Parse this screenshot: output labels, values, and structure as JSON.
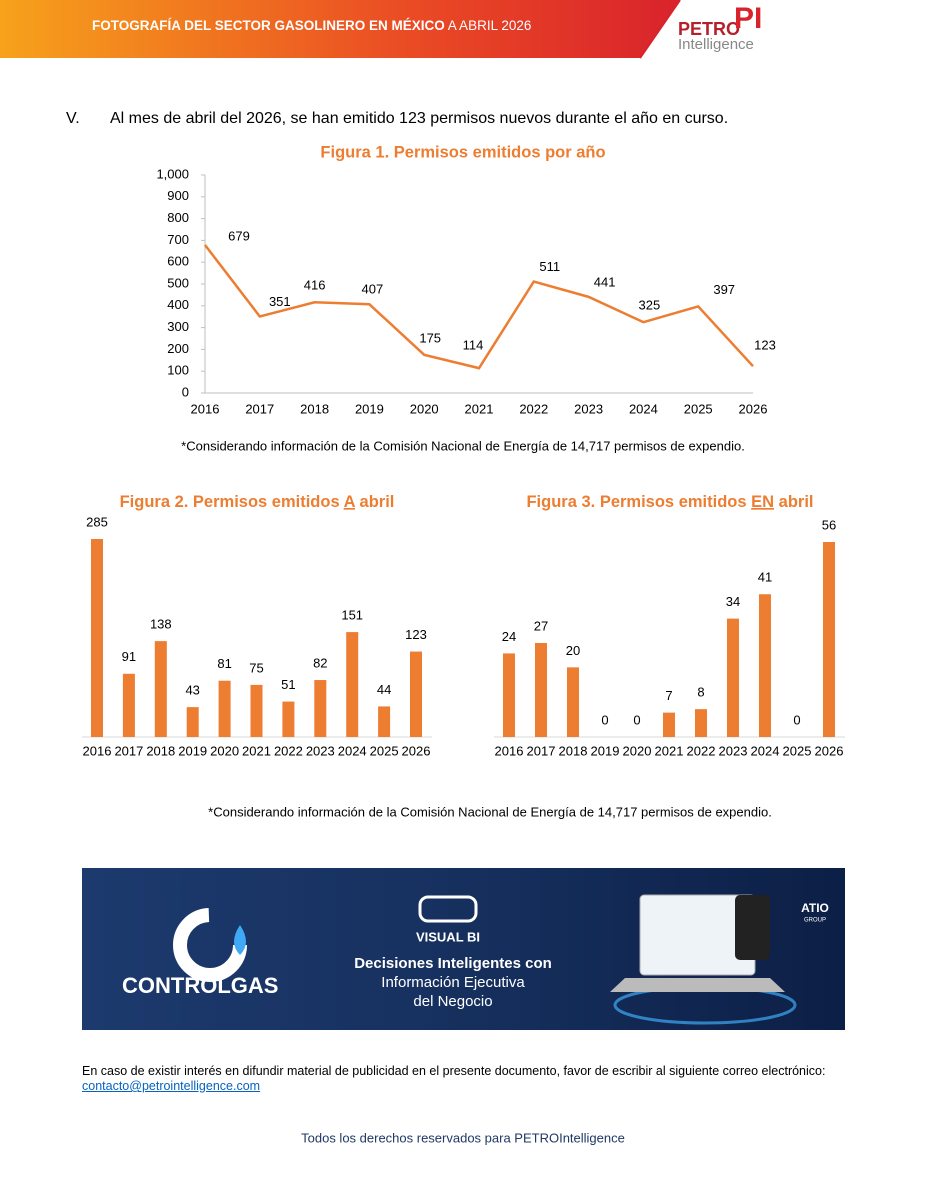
{
  "header": {
    "title": [
      "FOTOGRAFÍA DEL SECTOR GASOLINERO EN MÉXICO",
      "A ABRIL 2026"
    ],
    "logo": {
      "brand": "PETRO",
      "mark": "PI",
      "tagline": "Intelligence"
    }
  },
  "section": {
    "number": "V.",
    "text": "Al mes de abril del 2026, se han emitido 123 permisos nuevos durante el año en curso."
  },
  "chart_data": [
    {
      "type": "line",
      "title": "Figura 1. Permisos emitidos por año",
      "categories": [
        "2016",
        "2017",
        "2018",
        "2019",
        "2020",
        "2021",
        "2022",
        "2023",
        "2024",
        "2025",
        "2026"
      ],
      "values": [
        679,
        351,
        416,
        407,
        175,
        114,
        511,
        441,
        325,
        397,
        123
      ],
      "color": "#ed7d31",
      "ylim": [
        0,
        1000
      ],
      "yticks": [
        0,
        100,
        200,
        300,
        400,
        500,
        600,
        700,
        800,
        900,
        {
          "value": 1000,
          "label": "1,000"
        }
      ],
      "note": "*Considerando información de la Comisión Nacional de Energía de 14,717 permisos de expendio."
    },
    {
      "type": "bar",
      "title": [
        "Figura 2. Permisos emitidos",
        "A",
        "abril"
      ],
      "categories": [
        "2016",
        "2017",
        "2018",
        "2019",
        "2020",
        "2021",
        "2022",
        "2023",
        "2024",
        "2025",
        "2026"
      ],
      "values": [
        285,
        91,
        138,
        43,
        81,
        75,
        51,
        82,
        151,
        44,
        123
      ],
      "color": "#ed7d31"
    },
    {
      "type": "bar",
      "title": [
        "Figura 3. Permisos emitidos",
        "EN",
        "abril"
      ],
      "categories": [
        "2016",
        "2017",
        "2018",
        "2019",
        "2020",
        "2021",
        "2022",
        "2023",
        "2024",
        "2025",
        "2026"
      ],
      "values": [
        24,
        27,
        20,
        0,
        0,
        7,
        8,
        34,
        41,
        0,
        56
      ],
      "color": "#ed7d31",
      "note": "*Considerando información de la Comisión Nacional de Energía de 14,717 permisos de expendio."
    }
  ],
  "banner": {
    "brand": "CONTROLGAS",
    "product": "VISUAL BI",
    "tagline": [
      "Decisiones Inteligentes con",
      "Información Ejecutiva",
      "del Negocio"
    ],
    "partner": "ATIO",
    "partner_sub": "GROUP"
  },
  "contact": {
    "text": "En caso de existir interés en difundir material de publicidad en el presente documento, favor de escribir al siguiente correo electrónico:",
    "email": "contacto@petrointelligence.com"
  },
  "footer": "Todos los derechos reservados para PETROIntelligence"
}
